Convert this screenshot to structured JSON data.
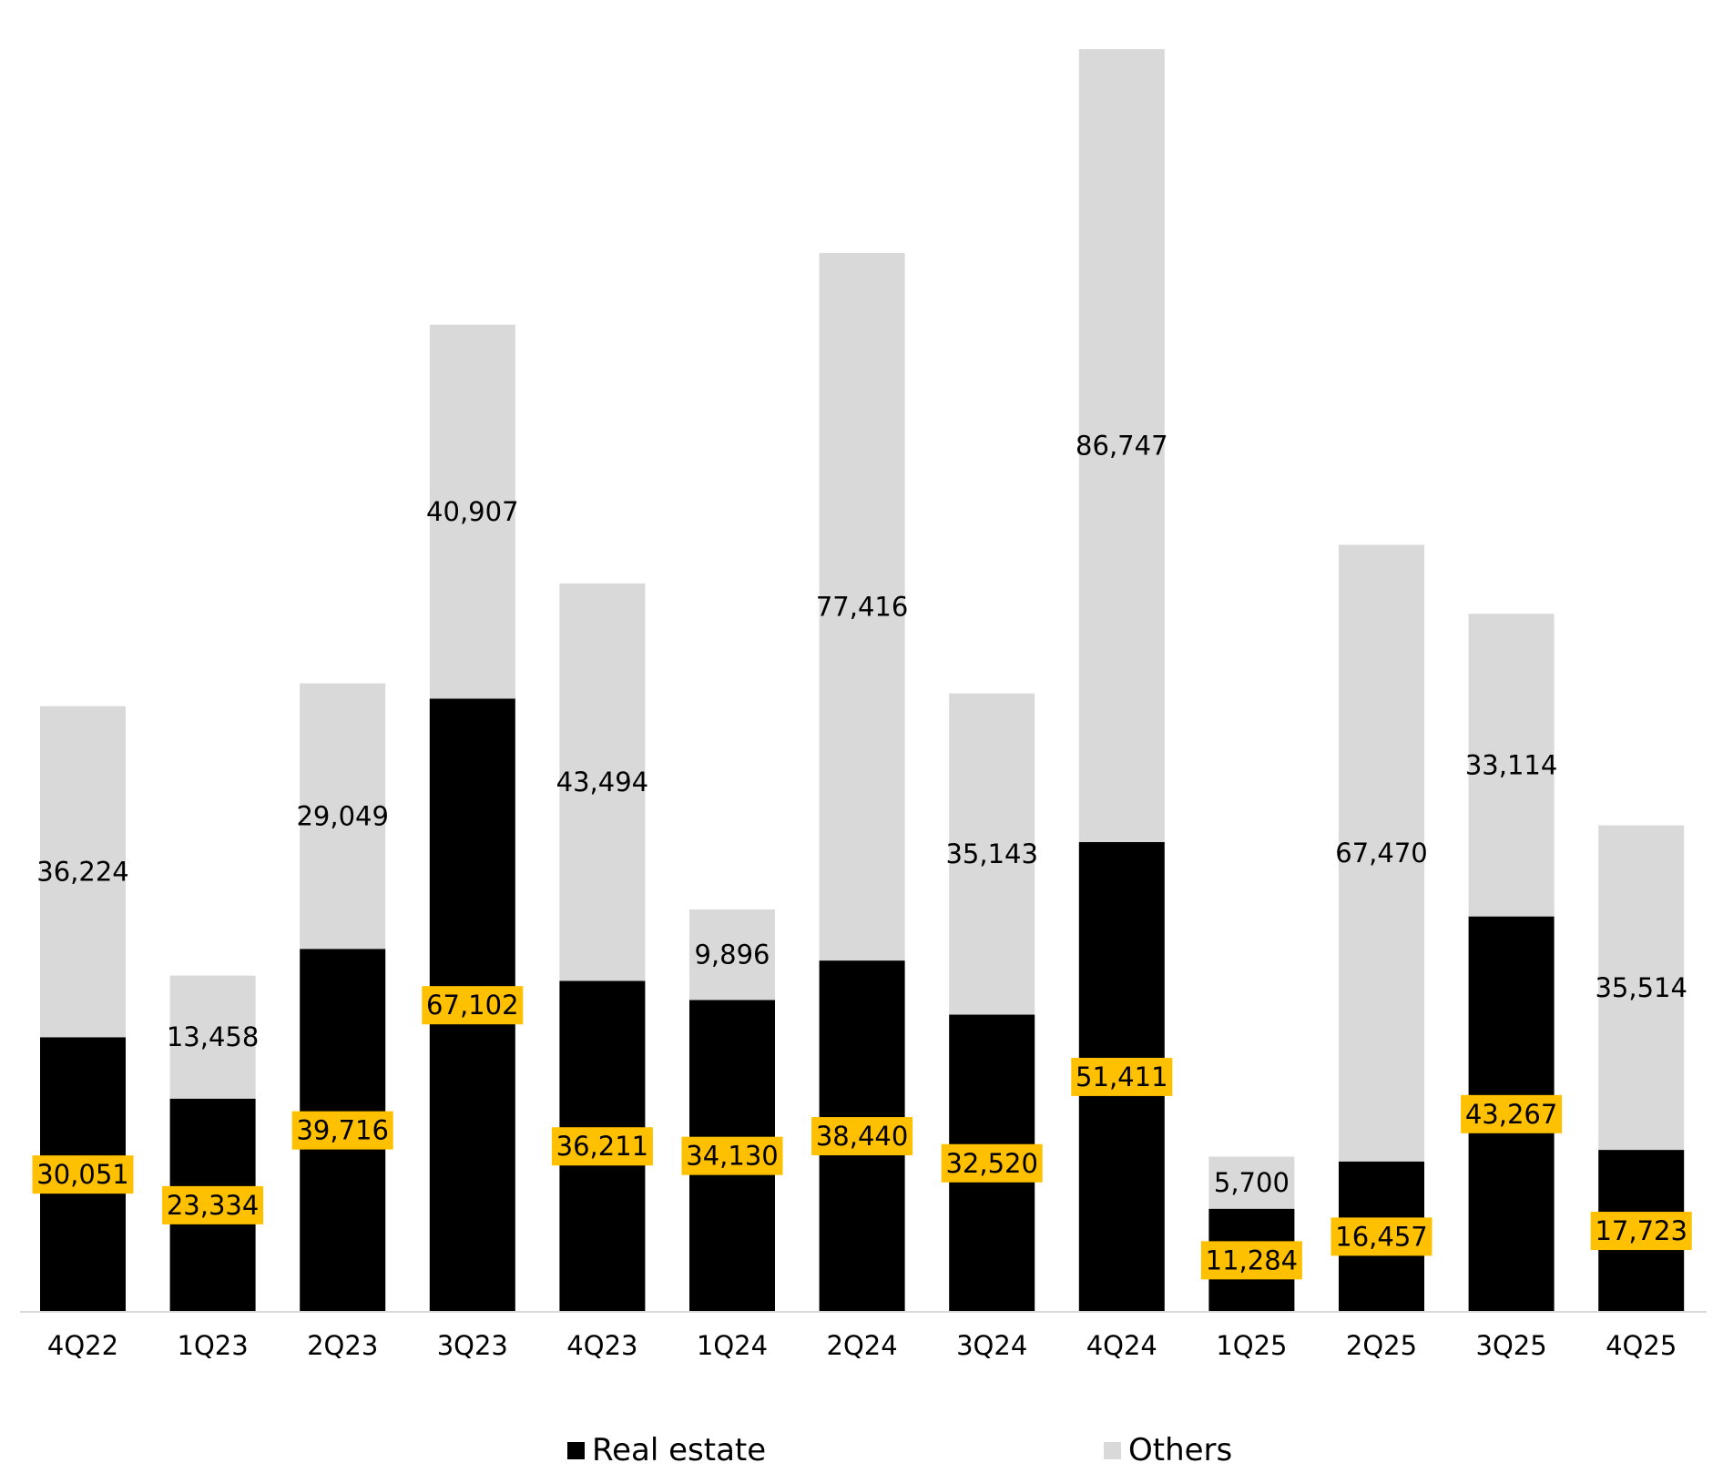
{
  "chart_data": {
    "type": "bar",
    "stacked": true,
    "categories": [
      "4Q22",
      "1Q23",
      "2Q23",
      "3Q23",
      "4Q23",
      "1Q24",
      "2Q24",
      "3Q24",
      "4Q24",
      "1Q25",
      "2Q25",
      "3Q25",
      "4Q25"
    ],
    "series": [
      {
        "name": "Real estate",
        "color": "#000000",
        "label_bg": "#FFC000",
        "values": [
          30051,
          23334,
          39716,
          67102,
          36211,
          34130,
          38440,
          32520,
          51411,
          11284,
          16457,
          43267,
          17723
        ]
      },
      {
        "name": "Others",
        "color": "#D9D9D9",
        "values": [
          36224,
          13458,
          29049,
          40907,
          43494,
          9896,
          77416,
          35143,
          86747,
          5700,
          67470,
          33114,
          35514
        ]
      }
    ],
    "value_labels": {
      "Real estate": [
        "30,051",
        "23,334",
        "39,716",
        "67,102",
        "36,211",
        "34,130",
        "38,440",
        "32,520",
        "51,411",
        "11,284",
        "16,457",
        "43,267",
        "17,723"
      ],
      "Others": [
        "36,224",
        "13,458",
        "29,049",
        "40,907",
        "43,494",
        "9,896",
        "77,416",
        "35,143",
        "86,747",
        "5,700",
        "67,470",
        "33,114",
        "35,514"
      ]
    },
    "ylim": [
      0,
      140000
    ],
    "grid": false,
    "legend_position": "bottom"
  }
}
